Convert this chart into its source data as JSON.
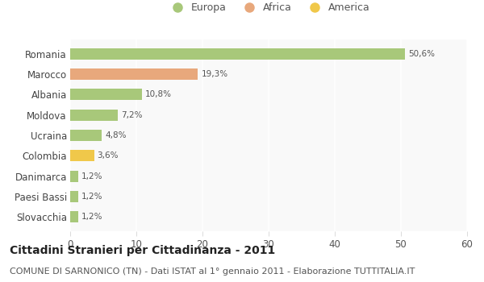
{
  "categories": [
    "Romania",
    "Marocco",
    "Albania",
    "Moldova",
    "Ucraina",
    "Colombia",
    "Danimarca",
    "Paesi Bassi",
    "Slovacchia"
  ],
  "values": [
    50.6,
    19.3,
    10.8,
    7.2,
    4.8,
    3.6,
    1.2,
    1.2,
    1.2
  ],
  "labels": [
    "50,6%",
    "19,3%",
    "10,8%",
    "7,2%",
    "4,8%",
    "3,6%",
    "1,2%",
    "1,2%",
    "1,2%"
  ],
  "colors": [
    "#a8c87a",
    "#e8a87c",
    "#a8c87a",
    "#a8c87a",
    "#a8c87a",
    "#f0c84a",
    "#a8c87a",
    "#a8c87a",
    "#a8c87a"
  ],
  "legend": [
    {
      "label": "Europa",
      "color": "#a8c87a"
    },
    {
      "label": "Africa",
      "color": "#e8a87c"
    },
    {
      "label": "America",
      "color": "#f0c84a"
    }
  ],
  "xlim": [
    0,
    60
  ],
  "xticks": [
    0,
    10,
    20,
    30,
    40,
    50,
    60
  ],
  "title": "Cittadini Stranieri per Cittadinanza - 2011",
  "subtitle": "COMUNE DI SARNONICO (TN) - Dati ISTAT al 1° gennaio 2011 - Elaborazione TUTTITALIA.IT",
  "background_color": "#ffffff",
  "plot_bg_color": "#f9f9f9",
  "bar_height": 0.55,
  "title_fontsize": 10,
  "subtitle_fontsize": 8
}
